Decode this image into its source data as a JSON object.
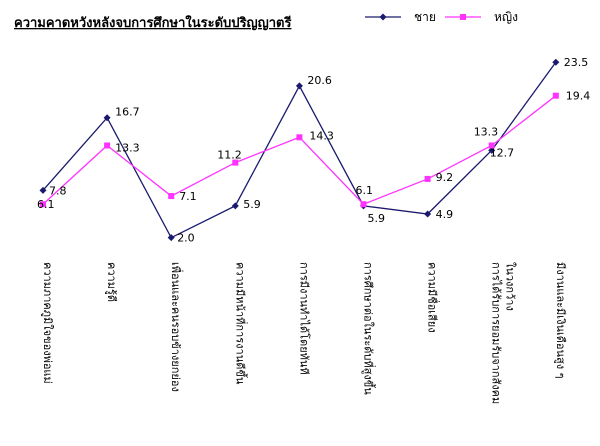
{
  "chart_data": {
    "type": "line",
    "title": "ความคาดหวังหลังจบการศึกษาในระดับปริญญาตรี",
    "xlabel": "",
    "ylabel": "",
    "ylim": [
      0,
      25
    ],
    "grid": false,
    "legend_position": "top-right",
    "categories": [
      [
        "ความภาคภูมิใจของพ่อแม่"
      ],
      [
        "ความรู้ดี"
      ],
      [
        "เพื่อนและคนรอบข้างยกย่อง"
      ],
      [
        "ความมีหน้าที่การงานดีขึ้น"
      ],
      [
        "การมีงานทำได้โดยทันที"
      ],
      [
        "การศึกษาต่อในระดับที่สูงขึ้น"
      ],
      [
        "ความมีชื่อเสียง"
      ],
      [
        "การได้รับการยอมรับจากสังคม",
        "ในวงกว้าง"
      ],
      [
        "มีงานและมีเงินเดือนสูง ๆ"
      ]
    ],
    "series": [
      {
        "name": "ชาย",
        "color": "#1a1a6e",
        "marker": "diamond",
        "values": [
          7.8,
          16.7,
          2.0,
          5.9,
          20.6,
          5.9,
          4.9,
          12.7,
          23.5
        ],
        "labels": [
          "7.8",
          "16.7",
          "2.0",
          "5.9",
          "20.6",
          "5.9",
          "4.9",
          "12.7",
          "23.5"
        ]
      },
      {
        "name": "หญิง",
        "color": "#ff33ff",
        "marker": "square",
        "values": [
          6.1,
          13.3,
          7.1,
          11.2,
          14.3,
          6.1,
          9.2,
          13.3,
          19.4
        ],
        "labels": [
          "6.1",
          "13.3",
          "7.1",
          "11.2",
          "14.3",
          "6.1",
          "9.2",
          "13.3",
          "19.4"
        ]
      }
    ]
  }
}
